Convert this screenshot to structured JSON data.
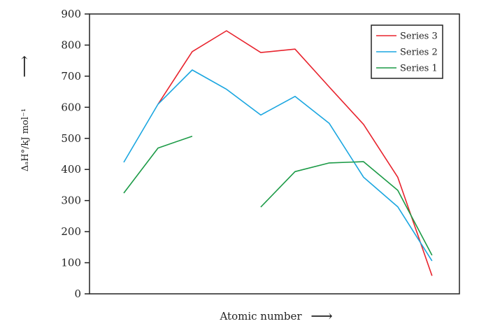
{
  "chart_data": {
    "type": "line",
    "xlabel": "Atomic number",
    "ylabel": "ΔₐH°/kJ mol⁻¹",
    "ylim": [
      0,
      900
    ],
    "yticks": [
      0,
      100,
      200,
      300,
      400,
      500,
      600,
      700,
      800,
      900
    ],
    "x": [
      1,
      2,
      3,
      4,
      5,
      6,
      7,
      8,
      9,
      10
    ],
    "grid": false,
    "legend_position": "top-right",
    "series": [
      {
        "name": "Series 3",
        "color": "#e8232d",
        "values": [
          null,
          610,
          779,
          846,
          776,
          787,
          665,
          545,
          375,
          58
        ]
      },
      {
        "name": "Series 2",
        "color": "#1aa6e0",
        "values": [
          423,
          610,
          720,
          658,
          575,
          635,
          548,
          375,
          280,
          106
        ]
      },
      {
        "name": "Series 1",
        "color": "#1b9a46",
        "values": [
          324,
          469,
          507,
          null,
          279,
          393,
          421,
          425,
          333,
          124
        ]
      }
    ],
    "legend_order": [
      0,
      1,
      2
    ],
    "arrow_glyph": "⟶"
  }
}
